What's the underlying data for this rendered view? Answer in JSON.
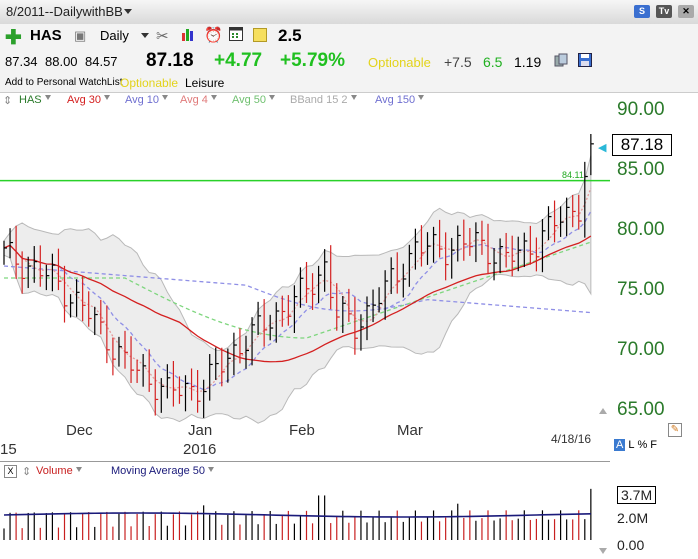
{
  "window": {
    "title": "8/2011--DailywithBB",
    "btn_s": "S",
    "btn_tv": "Tv"
  },
  "toolbar": {
    "symbol": "HAS",
    "period": "Daily",
    "rating": "2.5"
  },
  "quote": {
    "last": "87.18",
    "change": "+4.77",
    "pct": "+5.79%",
    "optionable": "Optionable",
    "delta": "+7.5",
    "val_a": "6.5",
    "val_b": "1.19"
  },
  "ohl": {
    "open": "87.34",
    "high": "88.00",
    "low": "84.57"
  },
  "info": {
    "watchlist": "Add to Personal WatchList",
    "optionable": "Optionable",
    "sector": "Leisure"
  },
  "legend": {
    "sym": "HAS",
    "avg30": "Avg 30",
    "avg10": "Avg 10",
    "avg4": "Avg 4",
    "avg50": "Avg 50",
    "bband": "BBand 15 2",
    "avg150": "Avg 150"
  },
  "yaxis": [
    "90.00",
    "85.00",
    "80.00",
    "75.00",
    "70.00",
    "65.00"
  ],
  "xaxis": {
    "dec": "Dec",
    "jan": "Jan",
    "feb": "Feb",
    "mar": "Mar",
    "yr": "2016",
    "left": "15"
  },
  "price_box": "87.18",
  "horizontal_line": "84.11",
  "date": "4/18/16",
  "flags": [
    "A",
    "L",
    "%",
    "F"
  ],
  "volume": {
    "label": "Volume",
    "ma": "Moving Average 50",
    "y": [
      "3.7M",
      "2.0M",
      "0.00"
    ],
    "close": "X"
  },
  "colors": {
    "up": "#000000",
    "down": "#d42020",
    "avg30": "#d42020",
    "avg10": "#8f8fe6",
    "avg50": "#7ed67e",
    "avg150": "#8f8fe6",
    "bband": "#b9b9b9",
    "hline": "#29d129",
    "volma": "#1a1a7a"
  }
}
